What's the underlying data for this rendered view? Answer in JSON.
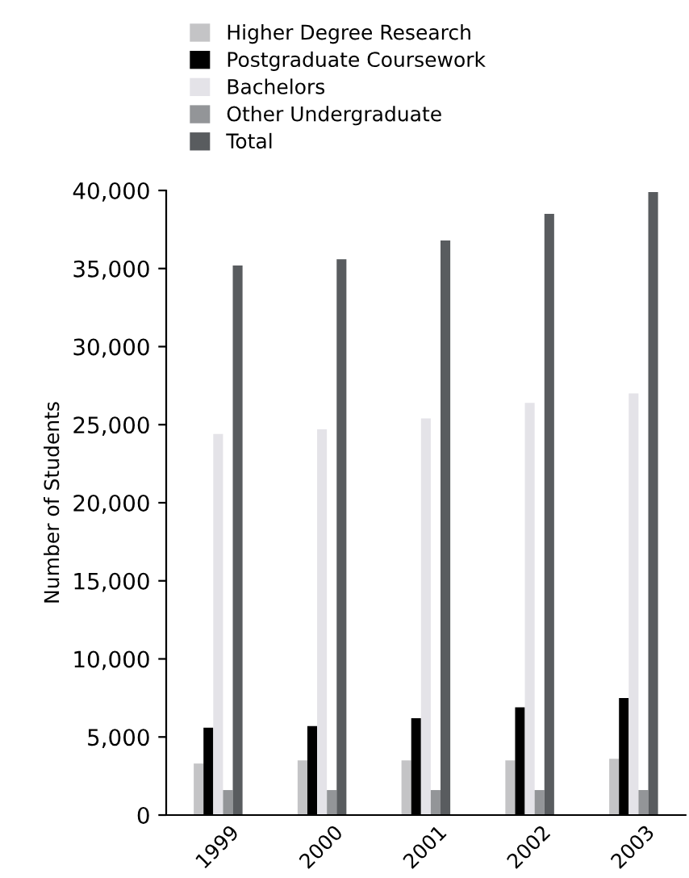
{
  "chart_data": {
    "type": "bar",
    "ylabel": "Number of Students",
    "categories": [
      "1999",
      "2000",
      "2001",
      "2002",
      "2003"
    ],
    "series": [
      {
        "name": "Higher Degree Research",
        "color": "#c4c4c6",
        "values": [
          3300,
          3500,
          3500,
          3500,
          3600
        ]
      },
      {
        "name": "Postgraduate Coursework",
        "color": "#000000",
        "values": [
          5600,
          5700,
          6200,
          6900,
          7500
        ]
      },
      {
        "name": "Bachelors",
        "color": "#e4e3e8",
        "values": [
          24400,
          24700,
          25400,
          26400,
          27000
        ]
      },
      {
        "name": "Other Undergraduate",
        "color": "#939598",
        "values": [
          1600,
          1600,
          1600,
          1600,
          1600
        ]
      },
      {
        "name": "Total",
        "color": "#595c5f",
        "values": [
          35200,
          35600,
          36800,
          38500,
          39900
        ]
      }
    ],
    "ylim": [
      0,
      40000
    ],
    "yticks": [
      {
        "value": 0,
        "label": "0"
      },
      {
        "value": 5000,
        "label": "5,000"
      },
      {
        "value": 10000,
        "label": "10,000"
      },
      {
        "value": 15000,
        "label": "15,000"
      },
      {
        "value": 20000,
        "label": "20,000"
      },
      {
        "value": 25000,
        "label": "25,000"
      },
      {
        "value": 30000,
        "label": "30,000"
      },
      {
        "value": 35000,
        "label": "35,000"
      },
      {
        "value": 40000,
        "label": "40,000"
      }
    ],
    "grid": false,
    "legend": "top"
  }
}
